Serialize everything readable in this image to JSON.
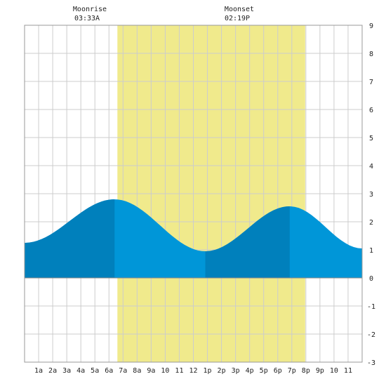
{
  "chart_data": {
    "type": "area",
    "header": {
      "moonrise_label": "Moonrise",
      "moonrise_time": "03:33A",
      "moonset_label": "Moonset",
      "moonset_time": "02:19P"
    },
    "x_tick_labels": [
      "1a",
      "2a",
      "3a",
      "4a",
      "5a",
      "6a",
      "7a",
      "8a",
      "9a",
      "10",
      "11",
      "12",
      "1p",
      "2p",
      "3p",
      "4p",
      "5p",
      "6p",
      "7p",
      "8p",
      "9p",
      "10",
      "11"
    ],
    "xlim": [
      0,
      24
    ],
    "ylim": [
      -3,
      9
    ],
    "y_ticks": [
      -3,
      -2,
      -1,
      0,
      1,
      2,
      3,
      4,
      5,
      6,
      7,
      8,
      9
    ],
    "grid": true,
    "daylight_hours": [
      6.6,
      19.95
    ],
    "tide_extremes": [
      {
        "hour": 0.0,
        "height": 1.25
      },
      {
        "hour": 6.4,
        "height": 2.8
      },
      {
        "hour": 12.85,
        "height": 0.95
      },
      {
        "hour": 18.85,
        "height": 2.55
      },
      {
        "hour": 24.0,
        "height": 1.05
      }
    ],
    "dark_segments": [
      [
        0,
        6.4
      ],
      [
        12.85,
        18.85
      ]
    ],
    "colors": {
      "daylight": "#f0ea8c",
      "tide_light": "#0096d8",
      "tide_dark": "#0080bc",
      "grid": "#cccccc",
      "frame": "#999999",
      "zero_line": "#888888"
    }
  }
}
